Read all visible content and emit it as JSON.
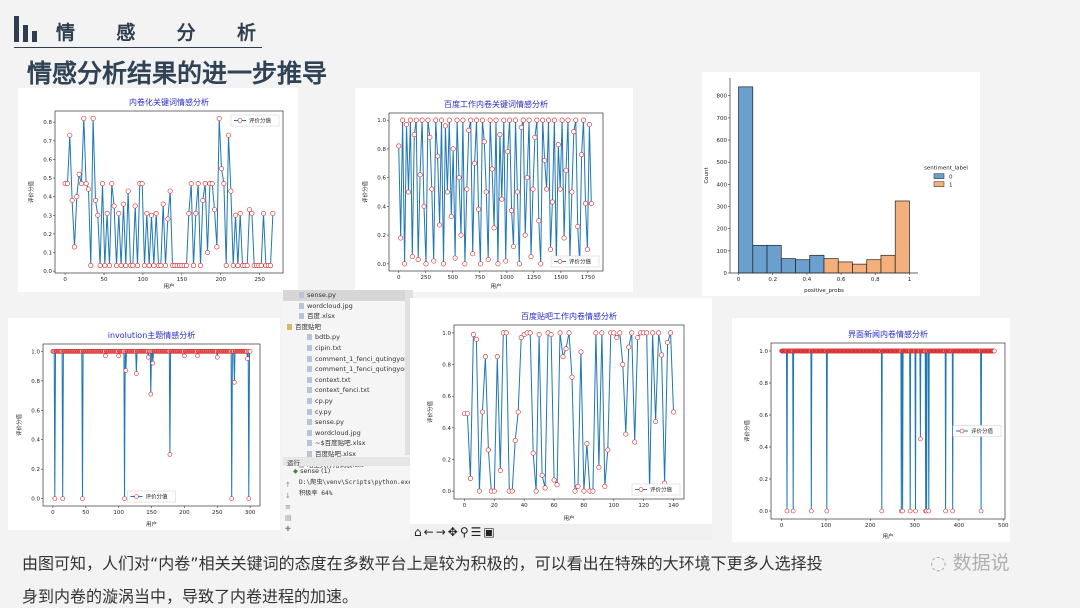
{
  "header": {
    "section_chars": [
      "情",
      "感",
      "分",
      "析"
    ],
    "title": "情感分析结果的进一步推导"
  },
  "colors": {
    "header": "#2f3e4e",
    "line": "#1f77b4",
    "marker": "#d62728",
    "chart_title": "#2a2ac8",
    "hist_0": "#6b9fce",
    "hist_1": "#f4b07c"
  },
  "ide": {
    "files": [
      {
        "name": "sense.py",
        "type": "file",
        "selected": true
      },
      {
        "name": "wordcloud.jpg",
        "type": "file"
      },
      {
        "name": "百度.xlsx",
        "type": "file"
      },
      {
        "name": "百度贴吧",
        "type": "folder"
      },
      {
        "name": "bdtb.py",
        "type": "file"
      },
      {
        "name": "cipin.txt",
        "type": "file"
      },
      {
        "name": "comment_1_fenci_qutingyongci.t",
        "type": "file"
      },
      {
        "name": "comment_1_fenci_qutingyongci_",
        "type": "file"
      },
      {
        "name": "context.txt",
        "type": "file"
      },
      {
        "name": "context_fenci.txt",
        "type": "file"
      },
      {
        "name": "cp.py",
        "type": "file"
      },
      {
        "name": "cy.py",
        "type": "file"
      },
      {
        "name": "sense.py",
        "type": "file"
      },
      {
        "name": "wordcloud.jpg",
        "type": "file"
      },
      {
        "name": "~$百度贴吧.xlsx",
        "type": "file"
      },
      {
        "name": "百度贴吧.xlsx",
        "type": "file"
      },
      {
        "name": "哈工大停用词表.txt",
        "type": "file"
      }
    ],
    "run_label": "运行",
    "run_tab": "sense (1)",
    "console": [
      "D:\\爬虫\\venv\\Scripts\\python.exe",
      "积极率  64%"
    ]
  },
  "mpl_toolbar": [
    "home-icon",
    "back-icon",
    "forward-icon",
    "pan-icon",
    "zoom-icon",
    "configure-icon",
    "save-icon"
  ],
  "chart_data": [
    {
      "id": "c1",
      "type": "line",
      "title": "内卷化关键词情感分析",
      "xlabel": "用户",
      "ylabel": "评价分值",
      "legend": "评价分值",
      "legend_loc": "upper right",
      "xlim": [
        -13,
        280
      ],
      "ylim": [
        -0.01,
        0.86
      ],
      "xticks": [
        0,
        50,
        100,
        150,
        200,
        250
      ],
      "yticks": [
        0.0,
        0.1,
        0.2,
        0.3,
        0.4,
        0.5,
        0.6,
        0.7,
        0.8
      ],
      "x_step": 3,
      "values": [
        0.47,
        0.47,
        0.73,
        0.38,
        0.13,
        0.4,
        0.52,
        0.47,
        0.82,
        0.47,
        0.44,
        0.03,
        0.82,
        0.38,
        0.3,
        0.03,
        0.47,
        0.03,
        0.31,
        0.03,
        0.47,
        0.35,
        0.03,
        0.31,
        0.03,
        0.36,
        0.03,
        0.43,
        0.03,
        0.03,
        0.35,
        0.03,
        0.47,
        0.47,
        0.03,
        0.31,
        0.03,
        0.3,
        0.03,
        0.31,
        0.03,
        0.03,
        0.36,
        0.03,
        0.28,
        0.43,
        0.03,
        0.03,
        0.03,
        0.03,
        0.03,
        0.03,
        0.03,
        0.31,
        0.47,
        0.03,
        0.31,
        0.47,
        0.03,
        0.38,
        0.47,
        0.1,
        0.47,
        0.47,
        0.33,
        0.13,
        0.82,
        0.55,
        0.47,
        0.03,
        0.73,
        0.43,
        0.03,
        0.3,
        0.03,
        0.31,
        0.03,
        0.03,
        0.03,
        0.33,
        0.31,
        0.03,
        0.03,
        0.03,
        0.03,
        0.31,
        0.03,
        0.03,
        0.03,
        0.31
      ]
    },
    {
      "id": "c2",
      "type": "line",
      "title": "百度工作内卷关键词情感分析",
      "xlabel": "用户",
      "ylabel": "评价分值",
      "legend": "评价分值",
      "legend_loc": "lower right",
      "xlim": [
        -90,
        1890
      ],
      "ylim": [
        -0.05,
        1.05
      ],
      "xticks": [
        0,
        250,
        500,
        750,
        1000,
        1250,
        1500,
        1750
      ],
      "yticks": [
        0.0,
        0.2,
        0.4,
        0.6,
        0.8,
        1.0
      ],
      "x_step": 18,
      "values": [
        0.82,
        0.18,
        1.0,
        0.0,
        0.97,
        0.5,
        1.0,
        0.05,
        0.9,
        1.0,
        0.03,
        0.62,
        1.0,
        0.4,
        0.0,
        1.0,
        0.88,
        0.52,
        0.02,
        1.0,
        0.75,
        0.27,
        1.0,
        0.0,
        0.96,
        0.5,
        1.0,
        0.33,
        0.8,
        0.04,
        1.0,
        0.6,
        0.2,
        1.0,
        0.0,
        0.52,
        0.93,
        1.0,
        0.07,
        0.7,
        1.0,
        0.38,
        0.0,
        1.0,
        0.85,
        0.5,
        0.03,
        1.0,
        0.66,
        0.25,
        1.0,
        0.0,
        0.9,
        0.45,
        1.0,
        0.02,
        0.78,
        1.0,
        0.37,
        0.12,
        1.0,
        0.5,
        0.0,
        0.95,
        1.0,
        0.2,
        0.6,
        1.0,
        0.05,
        0.52,
        0.88,
        1.0,
        0.3,
        0.0,
        1.0,
        0.72,
        0.52,
        1.0,
        0.1,
        0.43,
        1.0,
        0.0,
        0.83,
        0.52,
        1.0,
        0.18,
        0.65,
        1.0,
        0.04,
        0.5,
        0.92,
        1.0,
        0.26,
        0.0,
        0.76,
        1.0,
        0.42,
        0.1,
        0.97,
        0.42
      ]
    },
    {
      "id": "c3",
      "type": "bar",
      "xlabel": "positive_probs",
      "ylabel": "Count",
      "legend_title": "sentiment_label",
      "legend": [
        "0",
        "1"
      ],
      "legend_loc": "right",
      "xlim": [
        -0.05,
        1.05
      ],
      "ylim": [
        0,
        880
      ],
      "xticks": [
        0.0,
        0.2,
        0.4,
        0.6,
        0.8,
        1.0
      ],
      "yticks": [
        0,
        100,
        200,
        300,
        400,
        500,
        600,
        700,
        800
      ],
      "bin_width": 0.0833,
      "series": [
        {
          "name": "0",
          "bin_starts": [
            0.0,
            0.0833,
            0.1667,
            0.25,
            0.3333,
            0.4167
          ],
          "values": [
            840,
            125,
            125,
            65,
            60,
            80
          ]
        },
        {
          "name": "1",
          "bin_starts": [
            0.5,
            0.5833,
            0.6667,
            0.75,
            0.8333,
            0.9167
          ],
          "values": [
            65,
            50,
            40,
            60,
            80,
            325
          ]
        }
      ]
    },
    {
      "id": "c4",
      "type": "line",
      "title": "involution主题情感分析",
      "xlabel": "用户",
      "ylabel": "评价分值",
      "legend": "评价分值",
      "legend_loc": "lower center",
      "xlim": [
        -15,
        315
      ],
      "ylim": [
        -0.05,
        1.05
      ],
      "xticks": [
        0,
        50,
        100,
        150,
        200,
        250,
        300
      ],
      "yticks": [
        0.0,
        0.2,
        0.4,
        0.6,
        0.8,
        1.0
      ],
      "n_points": 301,
      "baseline": 1.0,
      "deviations": [
        [
          3,
          0
        ],
        [
          15,
          0
        ],
        [
          45,
          0
        ],
        [
          80,
          0.97
        ],
        [
          100,
          0.97
        ],
        [
          109,
          0
        ],
        [
          111,
          0.87
        ],
        [
          127,
          0.85
        ],
        [
          145,
          0.96
        ],
        [
          149,
          0.71
        ],
        [
          152,
          0.92
        ],
        [
          178,
          0.3
        ],
        [
          200,
          0.97
        ],
        [
          220,
          0.97
        ],
        [
          250,
          0.96
        ],
        [
          272,
          0
        ],
        [
          276,
          0.79
        ],
        [
          296,
          0.95
        ],
        [
          298,
          0
        ]
      ]
    },
    {
      "id": "c5",
      "type": "line",
      "title": "百度贴吧工作内卷情感分析",
      "xlabel": "用户",
      "ylabel": "评价分值",
      "legend": "评价分值",
      "legend_loc": "lower right",
      "xlim": [
        -7,
        147
      ],
      "ylim": [
        -0.05,
        1.05
      ],
      "xticks": [
        0,
        20,
        40,
        60,
        80,
        100,
        120,
        140
      ],
      "yticks": [
        0.0,
        0.2,
        0.4,
        0.6,
        0.8,
        1.0
      ],
      "x_step": 2,
      "values": [
        0.49,
        0.49,
        0.08,
        0.99,
        0.96,
        0.0,
        0.5,
        0.85,
        0.26,
        0.0,
        0.0,
        0.85,
        0.13,
        1.0,
        1.0,
        0.0,
        0.0,
        0.32,
        0.5,
        0.97,
        0.99,
        1.0,
        1.0,
        0.24,
        0.0,
        0.99,
        0.1,
        0.02,
        1.0,
        0.99,
        0.07,
        0.04,
        1.0,
        0.85,
        0.9,
        1.0,
        0.72,
        0.0,
        0.03,
        0.88,
        0.0,
        0.3,
        0.0,
        0.0,
        1.0,
        0.15,
        1.0,
        0.03,
        0.26,
        1.0,
        1.0,
        0.97,
        1.0,
        0.8,
        0.36,
        0.91,
        1.0,
        0.31,
        0.97,
        1.0,
        1.0,
        1.0,
        0.0,
        1.0,
        0.44,
        1.0,
        0.86,
        0.05,
        0.94,
        1.0,
        0.5
      ]
    },
    {
      "id": "c6",
      "type": "line",
      "title": "界面新闻内卷情感分析",
      "xlabel": "用户",
      "ylabel": "评价分值",
      "legend": "评价分值",
      "legend_loc": "center right",
      "xlim": [
        -24,
        504
      ],
      "ylim": [
        -0.05,
        1.05
      ],
      "xticks": [
        0,
        100,
        200,
        300,
        400,
        500
      ],
      "yticks": [
        0.0,
        0.2,
        0.4,
        0.6,
        0.8,
        1.0
      ],
      "n_points": 481,
      "baseline": 1.0,
      "deviations": [
        [
          12,
          0
        ],
        [
          26,
          0
        ],
        [
          67,
          0
        ],
        [
          102,
          0
        ],
        [
          226,
          0
        ],
        [
          270,
          0
        ],
        [
          273,
          0
        ],
        [
          290,
          0
        ],
        [
          302,
          0
        ],
        [
          313,
          0.45
        ],
        [
          325,
          0
        ],
        [
          327,
          0
        ],
        [
          332,
          0
        ],
        [
          370,
          0
        ],
        [
          386,
          0
        ],
        [
          450,
          0
        ]
      ]
    }
  ],
  "paragraph": {
    "line1": "由图可知，人们对“内卷”相关关键词的态度在多数平台上是较为积极的，可以看出在特殊的大环境下更多人选择投",
    "line2": "身到内卷的漩涡当中，导致了内卷进程的加速。"
  },
  "watermark": "数据说"
}
